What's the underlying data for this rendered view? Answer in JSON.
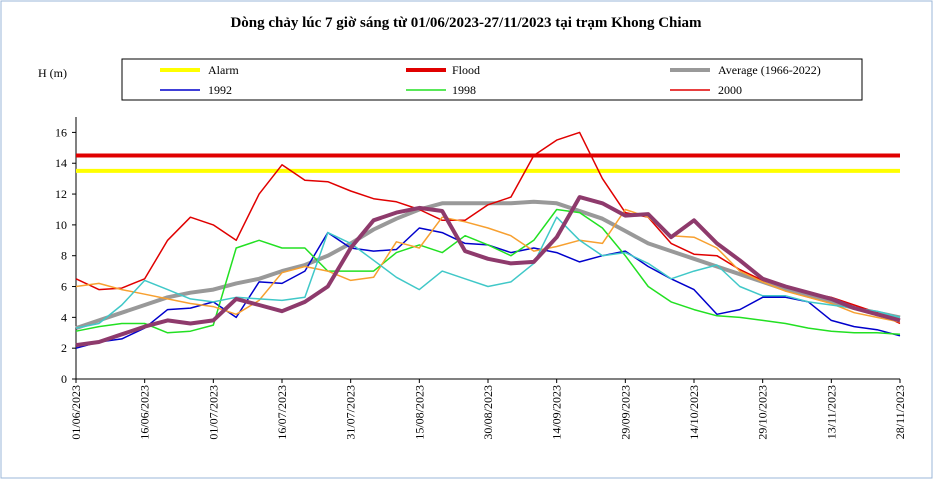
{
  "chart_data": {
    "type": "line",
    "title": "Dòng chảy lúc 7 giờ sáng từ 01/06/2023-27/11/2023 tại trạm Khong Chiam",
    "y_label": "H (m)",
    "categories": [
      "01/06/2023",
      null,
      null,
      "16/06/2023",
      null,
      null,
      "01/07/2023",
      null,
      null,
      "16/07/2023",
      null,
      null,
      "31/07/2023",
      null,
      null,
      "15/08/2023",
      null,
      null,
      "30/08/2023",
      null,
      null,
      "14/09/2023",
      null,
      null,
      "29/09/2023",
      null,
      null,
      "14/10/2023",
      null,
      null,
      "29/10/2023",
      null,
      null,
      "13/11/2023",
      null,
      null,
      "28/11/2023"
    ],
    "ylim": [
      0,
      17
    ],
    "yticks": [
      0,
      2,
      4,
      6,
      8,
      10,
      12,
      14,
      16
    ],
    "series": [
      {
        "name": "Alarm",
        "color": "#ffff00",
        "line_width": 4,
        "values": [
          13.5,
          13.5,
          13.5,
          13.5,
          13.5,
          13.5,
          13.5,
          13.5,
          13.5,
          13.5,
          13.5,
          13.5,
          13.5,
          13.5,
          13.5,
          13.5,
          13.5,
          13.5,
          13.5,
          13.5,
          13.5,
          13.5,
          13.5,
          13.5,
          13.5,
          13.5,
          13.5,
          13.5,
          13.5,
          13.5,
          13.5,
          13.5,
          13.5,
          13.5,
          13.5,
          13.5,
          13.5
        ]
      },
      {
        "name": "Flood",
        "color": "#e00000",
        "line_width": 4,
        "values": [
          14.5,
          14.5,
          14.5,
          14.5,
          14.5,
          14.5,
          14.5,
          14.5,
          14.5,
          14.5,
          14.5,
          14.5,
          14.5,
          14.5,
          14.5,
          14.5,
          14.5,
          14.5,
          14.5,
          14.5,
          14.5,
          14.5,
          14.5,
          14.5,
          14.5,
          14.5,
          14.5,
          14.5,
          14.5,
          14.5,
          14.5,
          14.5,
          14.5,
          14.5,
          14.5,
          14.5,
          14.5
        ]
      },
      {
        "name": "Average (1966-2022)",
        "color": "#999999",
        "line_width": 4,
        "values": [
          3.3,
          3.8,
          4.3,
          4.8,
          5.3,
          5.6,
          5.8,
          6.2,
          6.5,
          7.0,
          7.4,
          8.0,
          8.8,
          9.7,
          10.4,
          11.0,
          11.4,
          11.4,
          11.4,
          11.4,
          11.5,
          11.4,
          10.9,
          10.4,
          9.6,
          8.8,
          8.3,
          7.8,
          7.3,
          6.8,
          6.3,
          5.8,
          5.4,
          5.0,
          4.6,
          4.3,
          4.0
        ]
      },
      {
        "name": "1992",
        "color": "#0000cc",
        "line_width": 1.5,
        "values": [
          2.0,
          2.4,
          2.6,
          3.3,
          4.5,
          4.6,
          5.0,
          4.0,
          6.3,
          6.2,
          7.0,
          9.5,
          8.5,
          8.3,
          8.4,
          9.8,
          9.5,
          8.8,
          8.7,
          8.2,
          8.5,
          8.2,
          7.6,
          8.0,
          8.3,
          7.3,
          6.5,
          5.8,
          4.2,
          4.5,
          5.3,
          5.3,
          5.0,
          3.8,
          3.4,
          3.2,
          2.8
        ]
      },
      {
        "name": "1998",
        "color": "#22e022",
        "line_width": 1.5,
        "values": [
          3.1,
          3.4,
          3.6,
          3.6,
          3.0,
          3.1,
          3.5,
          8.5,
          9.0,
          8.5,
          8.5,
          7.0,
          7.0,
          7.0,
          8.2,
          8.7,
          8.2,
          9.3,
          8.7,
          8.0,
          9.0,
          11.0,
          10.8,
          9.8,
          8.0,
          6.0,
          5.0,
          4.5,
          4.1,
          4.0,
          3.8,
          3.6,
          3.3,
          3.1,
          3.0,
          3.0,
          2.9
        ]
      },
      {
        "name": "2000",
        "color": "#e00000",
        "line_width": 1.5,
        "values": [
          6.5,
          5.8,
          5.9,
          6.5,
          9.0,
          10.5,
          10.0,
          9.0,
          12.0,
          13.9,
          12.9,
          12.8,
          12.2,
          11.7,
          11.5,
          11.0,
          10.3,
          10.3,
          11.3,
          11.8,
          14.5,
          15.5,
          16.0,
          13.0,
          10.8,
          10.5,
          8.8,
          8.1,
          8.0,
          7.1,
          6.4,
          6.0,
          5.6,
          5.3,
          4.8,
          4.3,
          3.6
        ]
      },
      {
        "color": "#f7a030",
        "line_width": 1.5,
        "values": [
          6.0,
          6.2,
          5.8,
          5.5,
          5.2,
          4.9,
          4.7,
          4.2,
          5.1,
          6.9,
          7.3,
          7.0,
          6.4,
          6.6,
          8.9,
          8.5,
          10.5,
          10.2,
          9.8,
          9.3,
          8.3,
          8.6,
          9.0,
          8.8,
          11.0,
          10.5,
          9.3,
          9.2,
          8.5,
          7.0,
          6.3,
          5.7,
          5.3,
          4.9,
          4.3,
          4.0,
          3.7
        ]
      },
      {
        "color": "#40c8c8",
        "line_width": 1.5,
        "values": [
          3.3,
          3.6,
          4.8,
          6.4,
          5.8,
          5.2,
          5.0,
          5.3,
          5.2,
          5.1,
          5.3,
          9.5,
          8.8,
          7.7,
          6.6,
          5.8,
          7.0,
          6.5,
          6.0,
          6.3,
          7.5,
          10.5,
          9.0,
          8.0,
          8.2,
          7.5,
          6.5,
          7.0,
          7.4,
          6.0,
          5.4,
          5.4,
          5.0,
          4.8,
          4.6,
          4.4,
          4.0
        ]
      },
      {
        "color": "#8e3a6c",
        "line_width": 4,
        "values": [
          2.2,
          2.4,
          2.9,
          3.4,
          3.8,
          3.6,
          3.8,
          5.2,
          4.8,
          4.4,
          5.0,
          6.0,
          8.5,
          10.3,
          10.8,
          11.1,
          10.9,
          8.3,
          7.8,
          7.5,
          7.6,
          9.2,
          11.8,
          11.4,
          10.6,
          10.7,
          9.2,
          10.3,
          8.8,
          7.7,
          6.5,
          6.0,
          5.6,
          5.2,
          4.6,
          4.2,
          3.8
        ]
      }
    ]
  }
}
